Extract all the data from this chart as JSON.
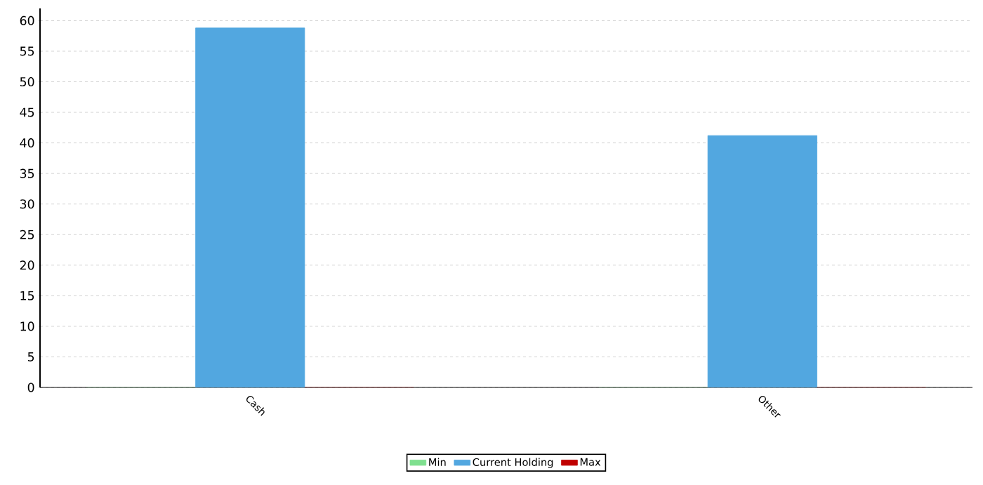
{
  "chart_data": {
    "type": "bar",
    "categories": [
      "Cash",
      "Other"
    ],
    "series": [
      {
        "name": "Min",
        "color": "#7fe08f",
        "values": [
          0,
          0
        ]
      },
      {
        "name": "Current Holding",
        "color": "#52a7e0",
        "values": [
          58.8,
          41.2
        ]
      },
      {
        "name": "Max",
        "color": "#c00000",
        "values": [
          0,
          0
        ]
      }
    ],
    "ylim": [
      0,
      62
    ],
    "yticks": [
      0,
      5,
      10,
      15,
      20,
      25,
      30,
      35,
      40,
      45,
      50,
      55,
      60
    ],
    "grid": "y",
    "legend": "bottom"
  }
}
